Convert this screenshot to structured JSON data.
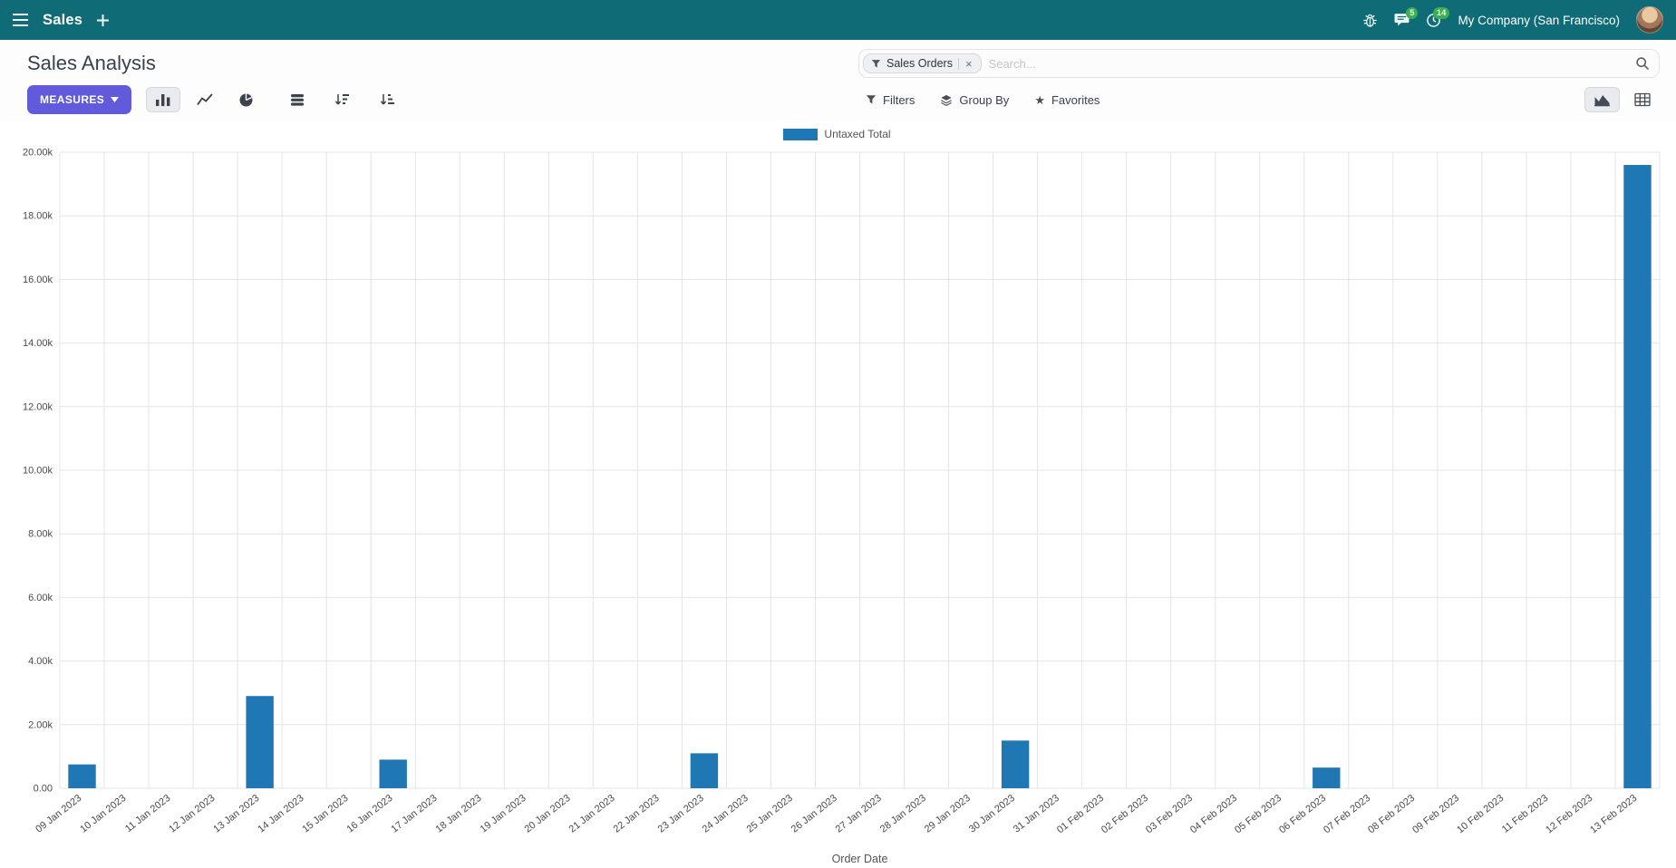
{
  "navbar": {
    "app_name": "Sales",
    "company": "My Company (San Francisco)",
    "messages_count": "5",
    "activities_count": "14"
  },
  "control_panel": {
    "breadcrumb": "Sales Analysis",
    "measures_label": "MEASURES",
    "search": {
      "facet": "Sales Orders",
      "placeholder": "Search...",
      "filters_label": "Filters",
      "group_by_label": "Group By",
      "favorites_label": "Favorites"
    }
  },
  "icons": [
    "menu-icon",
    "plus-icon",
    "bug-icon",
    "chat-icon",
    "clock-icon",
    "caret-down-icon",
    "bar-chart-icon",
    "line-chart-icon",
    "pie-chart-icon",
    "stacked-icon",
    "sort-descending-icon",
    "sort-ascending-icon",
    "filter-funnel-icon",
    "group-by-layers-icon",
    "favorites-star-icon",
    "search-magnifier-icon",
    "graph-view-icon",
    "pivot-view-icon",
    "facet-remove-icon"
  ],
  "colors": {
    "navbar_bg": "#0f6b75",
    "primary_button": "#615bdb",
    "badge_green": "#3eb34f",
    "chart_bar": "#1f77b4"
  },
  "chart_data": {
    "type": "bar",
    "title": "",
    "legend_label": "Untaxed Total",
    "legend_position": "top",
    "series_color": "#1f77b4",
    "xlabel": "Order Date",
    "ylabel": "",
    "grid": true,
    "ylim": [
      0,
      20000
    ],
    "ytick_values": [
      0,
      2000,
      4000,
      6000,
      8000,
      10000,
      12000,
      14000,
      16000,
      18000,
      20000
    ],
    "ytick_labels": [
      "0.00",
      "2.00k",
      "4.00k",
      "6.00k",
      "8.00k",
      "10.00k",
      "12.00k",
      "14.00k",
      "16.00k",
      "18.00k",
      "20.00k"
    ],
    "categories": [
      "09 Jan 2023",
      "10 Jan 2023",
      "11 Jan 2023",
      "12 Jan 2023",
      "13 Jan 2023",
      "14 Jan 2023",
      "15 Jan 2023",
      "16 Jan 2023",
      "17 Jan 2023",
      "18 Jan 2023",
      "19 Jan 2023",
      "20 Jan 2023",
      "21 Jan 2023",
      "22 Jan 2023",
      "23 Jan 2023",
      "24 Jan 2023",
      "25 Jan 2023",
      "26 Jan 2023",
      "27 Jan 2023",
      "28 Jan 2023",
      "29 Jan 2023",
      "30 Jan 2023",
      "31 Jan 2023",
      "01 Feb 2023",
      "02 Feb 2023",
      "03 Feb 2023",
      "04 Feb 2023",
      "05 Feb 2023",
      "06 Feb 2023",
      "07 Feb 2023",
      "08 Feb 2023",
      "09 Feb 2023",
      "10 Feb 2023",
      "11 Feb 2023",
      "12 Feb 2023",
      "13 Feb 2023"
    ],
    "values": [
      750,
      0,
      0,
      0,
      2900,
      0,
      0,
      900,
      0,
      0,
      0,
      0,
      0,
      0,
      1100,
      0,
      0,
      0,
      0,
      0,
      0,
      1500,
      0,
      0,
      0,
      0,
      0,
      0,
      650,
      0,
      0,
      0,
      0,
      0,
      0,
      19600
    ]
  }
}
